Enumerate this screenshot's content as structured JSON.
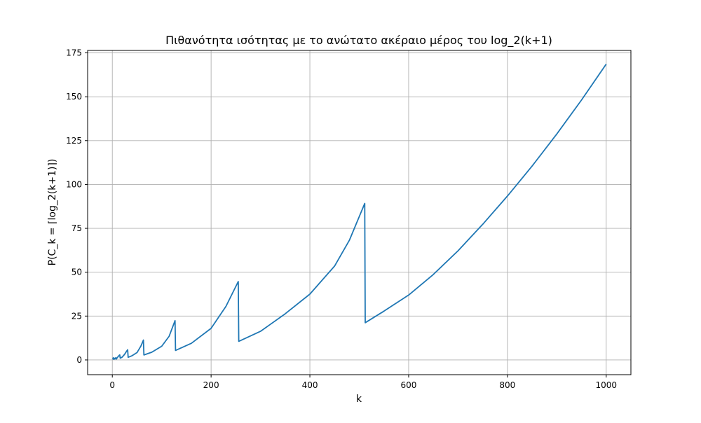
{
  "chart_data": {
    "type": "line",
    "title": "Πιθανότητα ισότητας με το ανώτατο ακέραιο μέρος του log_2(k+1)",
    "xlabel": "k",
    "ylabel": "P(C_k = ⌈log_2(k+1)⌉)",
    "xlim": [
      -50,
      1050
    ],
    "ylim": [
      -8.4,
      176.4
    ],
    "x_ticks": [
      0,
      200,
      400,
      600,
      800,
      1000
    ],
    "y_ticks": [
      0,
      25,
      50,
      75,
      100,
      125,
      150,
      175
    ],
    "grid": true,
    "line_color": "#1f77b4",
    "series": [
      {
        "x": [
          1,
          2,
          3,
          4,
          5,
          6,
          7,
          8,
          10,
          12,
          14,
          15,
          16,
          20,
          25,
          28,
          31,
          32,
          40,
          50,
          58,
          63,
          64,
          80,
          100,
          115,
          127,
          128,
          160,
          200,
          230,
          255,
          256,
          300,
          350,
          400,
          450,
          480,
          511,
          512,
          550,
          600,
          650,
          700,
          750,
          800,
          850,
          900,
          950,
          1000
        ],
        "y": [
          0.3,
          1.2,
          0.4,
          1.0,
          0.6,
          0.8,
          1.3,
          0.5,
          1.3,
          2.0,
          2.6,
          2.9,
          1.0,
          1.6,
          3.2,
          4.6,
          5.8,
          1.5,
          2.4,
          4.2,
          8.0,
          11.3,
          2.8,
          4.4,
          7.8,
          13.5,
          22.4,
          5.4,
          9.5,
          18.0,
          30.5,
          44.7,
          10.6,
          16.3,
          26.3,
          37.5,
          53.5,
          68.2,
          89.2,
          21.2,
          27.8,
          37.0,
          48.7,
          62.2,
          77.3,
          93.4,
          110.5,
          128.8,
          148.1,
          168.6
        ]
      }
    ]
  }
}
